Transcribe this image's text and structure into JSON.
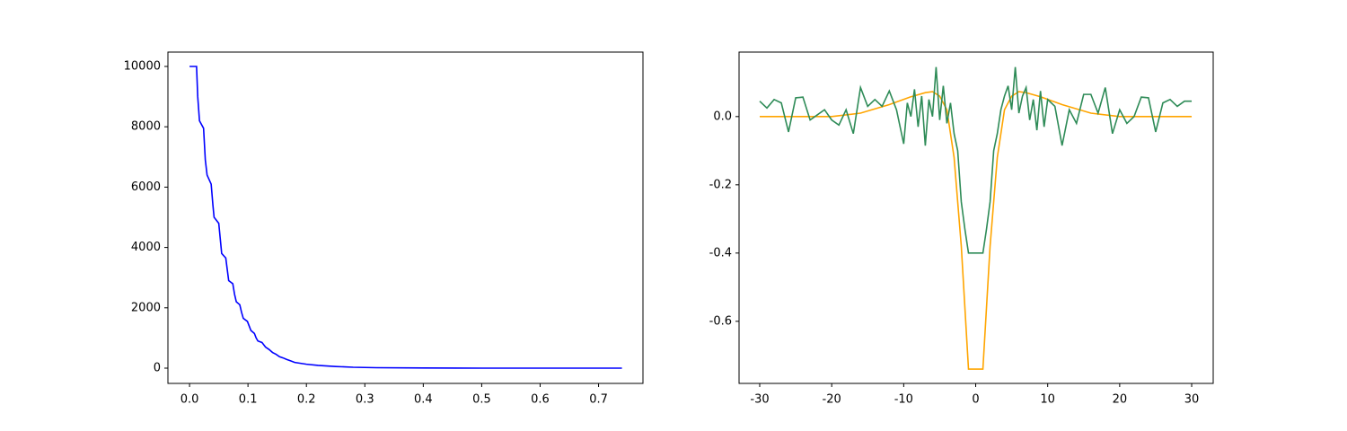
{
  "chart_data": [
    {
      "type": "line",
      "xlim": [
        -0.037,
        0.776
      ],
      "ylim": [
        -506,
        10476
      ],
      "xticks": [
        {
          "value": 0,
          "label": "0.0"
        },
        0.1,
        0.2,
        0.3,
        0.4,
        0.5,
        0.6,
        0.7
      ],
      "yticks": [
        0,
        2000,
        4000,
        6000,
        8000,
        10000
      ],
      "series": [
        {
          "color": "#0000ff",
          "x": [
            0.0,
            0.012,
            0.014,
            0.017,
            0.024,
            0.027,
            0.03,
            0.037,
            0.04,
            0.042,
            0.05,
            0.053,
            0.055,
            0.062,
            0.065,
            0.067,
            0.074,
            0.077,
            0.08,
            0.086,
            0.089,
            0.092,
            0.099,
            0.102,
            0.105,
            0.111,
            0.114,
            0.117,
            0.124,
            0.13,
            0.136,
            0.142,
            0.148,
            0.154,
            0.16,
            0.166,
            0.173,
            0.18,
            0.19,
            0.2,
            0.22,
            0.25,
            0.28,
            0.32,
            0.4,
            0.5,
            0.74
          ],
          "values": [
            10000,
            10000,
            9000,
            8200,
            7950,
            6900,
            6400,
            6100,
            5400,
            5000,
            4800,
            4200,
            3800,
            3650,
            3200,
            2900,
            2800,
            2450,
            2200,
            2100,
            1850,
            1650,
            1550,
            1400,
            1250,
            1150,
            1000,
            900,
            850,
            700,
            620,
            520,
            460,
            380,
            340,
            290,
            240,
            190,
            160,
            130,
            90,
            55,
            30,
            15,
            5,
            0,
            0
          ]
        }
      ]
    },
    {
      "type": "line",
      "xlim": [
        -32.87,
        32.99
      ],
      "ylim": [
        -0.782,
        0.189
      ],
      "xticks": [
        -30,
        -20,
        -10,
        0,
        10,
        20,
        30
      ],
      "yticks": [
        -0.6,
        -0.4,
        -0.2,
        {
          "value": 0,
          "label": "0.0"
        }
      ],
      "series": [
        {
          "color": "#ffa500",
          "x": [
            -30,
            -20,
            -16,
            -12,
            -9,
            -7,
            -6,
            -5,
            -4,
            -3,
            -2,
            -1,
            1,
            2,
            3,
            4,
            5,
            6,
            7,
            9,
            12,
            16,
            20,
            30
          ],
          "values": [
            0,
            0,
            0.01,
            0.035,
            0.058,
            0.07,
            0.073,
            0.06,
            0.02,
            -0.12,
            -0.38,
            -0.74,
            -0.74,
            -0.38,
            -0.12,
            0.02,
            0.06,
            0.073,
            0.07,
            0.058,
            0.035,
            0.01,
            0,
            0
          ]
        },
        {
          "color": "#2e8b57",
          "x": [
            -30,
            -29,
            -28,
            -27,
            -26,
            -25,
            -24,
            -23,
            -22,
            -21,
            -20,
            -19,
            -18,
            -17,
            -16,
            -15,
            -14,
            -13,
            -12,
            -11,
            -10,
            -9.5,
            -9,
            -8.5,
            -8,
            -7.5,
            -7,
            -6.5,
            -6,
            -5.5,
            -5,
            -4.5,
            -4,
            -3.5,
            -3,
            -2.5,
            -2,
            -1.5,
            -1,
            -0.5,
            0,
            0.5,
            1,
            1.5,
            2,
            2.5,
            3,
            3.5,
            4,
            4.5,
            5,
            5.5,
            6,
            6.5,
            7,
            7.5,
            8,
            8.5,
            9,
            9.5,
            10,
            11,
            12,
            13,
            14,
            15,
            16,
            17,
            18,
            19,
            20,
            21,
            22,
            23,
            24,
            25,
            26,
            27,
            28,
            29,
            30
          ],
          "values": [
            0.045,
            0.025,
            0.05,
            0.04,
            -0.045,
            0.055,
            0.057,
            -0.01,
            0.005,
            0.02,
            -0.01,
            -0.025,
            0.02,
            -0.05,
            0.085,
            0.03,
            0.05,
            0.03,
            0.075,
            0.02,
            -0.08,
            0.04,
            0.0,
            0.08,
            -0.03,
            0.06,
            -0.085,
            0.05,
            0.0,
            0.145,
            -0.01,
            0.09,
            -0.02,
            0.04,
            -0.05,
            -0.1,
            -0.25,
            -0.33,
            -0.4,
            -0.4,
            -0.4,
            -0.4,
            -0.4,
            -0.33,
            -0.25,
            -0.1,
            -0.05,
            0.02,
            0.06,
            0.09,
            0.02,
            0.145,
            0.01,
            0.06,
            0.085,
            -0.01,
            0.05,
            -0.04,
            0.075,
            -0.03,
            0.05,
            0.03,
            -0.085,
            0.02,
            -0.02,
            0.065,
            0.065,
            0.01,
            0.085,
            -0.05,
            0.02,
            -0.02,
            0.0,
            0.057,
            0.055,
            -0.045,
            0.04,
            0.05,
            0.03,
            0.045,
            0.045
          ]
        }
      ]
    }
  ]
}
